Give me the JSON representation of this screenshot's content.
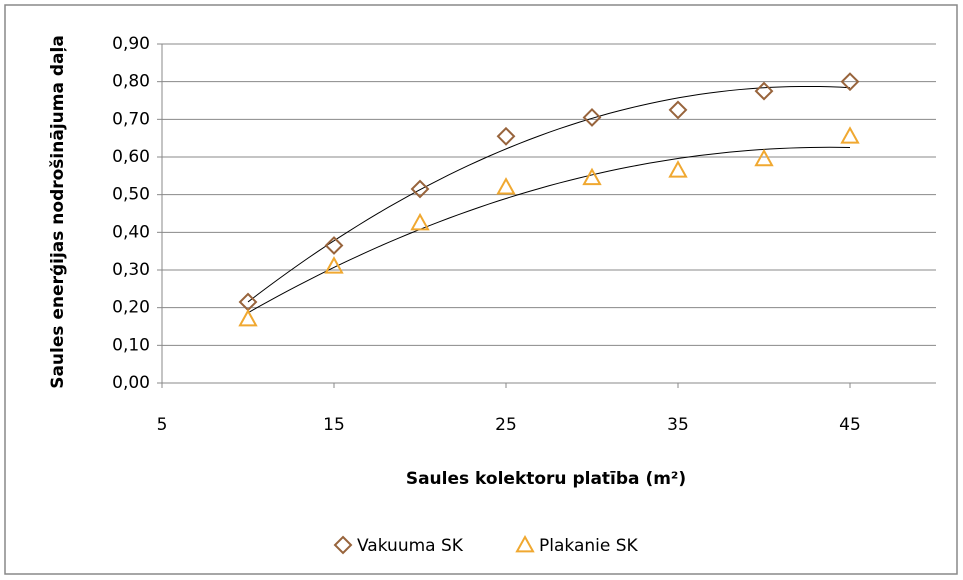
{
  "chart_data": {
    "type": "scatter",
    "x_label": "Saules kolektoru platība  (m²)",
    "y_label": "Saules enerģijas nodrošinājuma daļa",
    "x": [
      10,
      15,
      20,
      25,
      30,
      35,
      40,
      45
    ],
    "series": [
      {
        "name": "Vakuuma SK",
        "color": "#98643c",
        "marker": "diamond",
        "trendline": "polynomial",
        "order": 2,
        "values": [
          0.215,
          0.365,
          0.515,
          0.655,
          0.705,
          0.725,
          0.775,
          0.8
        ]
      },
      {
        "name": "Plakanie SK",
        "color": "#f0a830",
        "marker": "triangle",
        "trendline": "polynomial",
        "order": 2,
        "values": [
          0.17,
          0.31,
          0.425,
          0.52,
          0.545,
          0.565,
          0.595,
          0.655
        ]
      }
    ],
    "xlim": [
      5,
      50
    ],
    "xticks": [
      5,
      15,
      25,
      35,
      45
    ],
    "ylim": [
      0,
      0.9
    ],
    "yticks": [
      {
        "value": 0,
        "label": "0,00"
      },
      {
        "value": 0.1,
        "label": "0,10"
      },
      {
        "value": 0.2,
        "label": "0,20"
      },
      {
        "value": 0.3,
        "label": "0,30"
      },
      {
        "value": 0.4,
        "label": "0,40"
      },
      {
        "value": 0.5,
        "label": "0,50"
      },
      {
        "value": 0.6,
        "label": "0,60"
      },
      {
        "value": 0.7,
        "label": "0,70"
      },
      {
        "value": 0.8,
        "label": "0,80"
      },
      {
        "value": 0.9,
        "label": "0,90"
      }
    ],
    "grid": true,
    "legend": "bottom"
  }
}
